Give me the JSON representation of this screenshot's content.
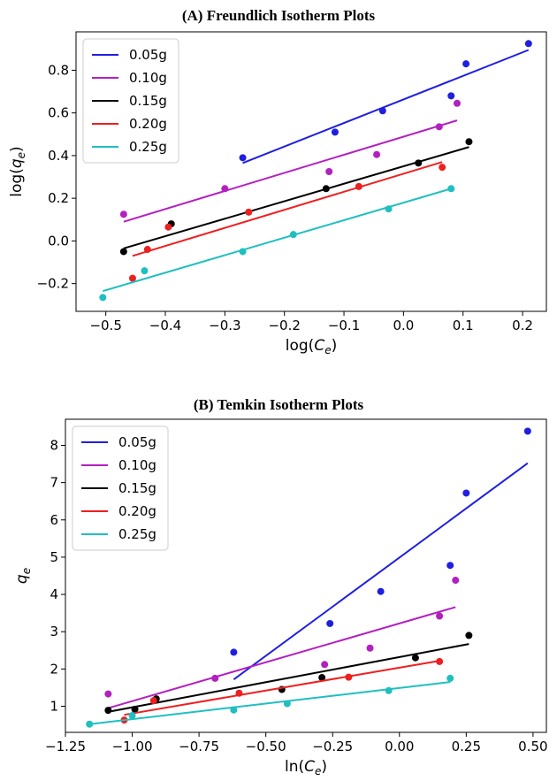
{
  "chart_data": [
    {
      "type": "scatter",
      "title": "(A) Freundlich Isotherm Plots",
      "xlabel_main": "log(",
      "xlabel_var": "C",
      "xlabel_sub": "e",
      "ylabel_main": "log(",
      "ylabel_var": "q",
      "ylabel_sub": "e",
      "xlim": [
        -0.55,
        0.24
      ],
      "ylim": [
        -0.33,
        0.98
      ],
      "xticks": [
        -0.5,
        -0.4,
        -0.3,
        -0.2,
        -0.1,
        0.0,
        0.1,
        0.2
      ],
      "xtick_labels": [
        "−0.5",
        "−0.4",
        "−0.3",
        "−0.2",
        "−0.1",
        "0.0",
        "0.1",
        "0.2"
      ],
      "yticks": [
        -0.2,
        0.0,
        0.2,
        0.4,
        0.6,
        0.8
      ],
      "ytick_labels": [
        "−0.2",
        "0.0",
        "0.2",
        "0.4",
        "0.6",
        "0.8"
      ],
      "legend_position": "top-left",
      "series": [
        {
          "name": "0.05g",
          "color": "#1f1fe0",
          "points": [
            [
              -0.27,
              0.39
            ],
            [
              -0.115,
              0.51
            ],
            [
              -0.035,
              0.61
            ],
            [
              0.08,
              0.68
            ],
            [
              0.105,
              0.83
            ],
            [
              0.21,
              0.925
            ]
          ],
          "fit": [
            [
              -0.27,
              0.365
            ],
            [
              0.21,
              0.895
            ]
          ]
        },
        {
          "name": "0.10g",
          "color": "#b41fc0",
          "points": [
            [
              -0.47,
              0.125
            ],
            [
              -0.3,
              0.245
            ],
            [
              -0.125,
              0.325
            ],
            [
              -0.045,
              0.405
            ],
            [
              0.06,
              0.535
            ],
            [
              0.09,
              0.645
            ]
          ],
          "fit": [
            [
              -0.47,
              0.09
            ],
            [
              0.09,
              0.565
            ]
          ]
        },
        {
          "name": "0.15g",
          "color": "#000000",
          "points": [
            [
              -0.47,
              -0.05
            ],
            [
              -0.39,
              0.08
            ],
            [
              -0.13,
              0.245
            ],
            [
              0.025,
              0.365
            ],
            [
              0.11,
              0.465
            ]
          ],
          "fit": [
            [
              -0.47,
              -0.035
            ],
            [
              0.11,
              0.44
            ]
          ]
        },
        {
          "name": "0.20g",
          "color": "#ee1f1f",
          "points": [
            [
              -0.455,
              -0.175
            ],
            [
              -0.43,
              -0.04
            ],
            [
              -0.395,
              0.065
            ],
            [
              -0.26,
              0.135
            ],
            [
              -0.075,
              0.255
            ],
            [
              0.065,
              0.345
            ]
          ],
          "fit": [
            [
              -0.455,
              -0.07
            ],
            [
              0.065,
              0.37
            ]
          ]
        },
        {
          "name": "0.25g",
          "color": "#1fbfbf",
          "points": [
            [
              -0.505,
              -0.265
            ],
            [
              -0.435,
              -0.14
            ],
            [
              -0.27,
              -0.05
            ],
            [
              -0.185,
              0.03
            ],
            [
              -0.025,
              0.15
            ],
            [
              0.08,
              0.245
            ]
          ],
          "fit": [
            [
              -0.505,
              -0.235
            ],
            [
              0.08,
              0.245
            ]
          ]
        }
      ]
    },
    {
      "type": "scatter",
      "title": "(B) Temkin Isotherm Plots",
      "xlabel_main": "ln(",
      "xlabel_var": "C",
      "xlabel_sub": "e",
      "ylabel_main": "",
      "ylabel_var": "q",
      "ylabel_sub": "e",
      "xlim": [
        -1.25,
        0.55
      ],
      "ylim": [
        0.3,
        8.7
      ],
      "xticks": [
        -1.25,
        -1.0,
        -0.75,
        -0.5,
        -0.25,
        0.0,
        0.25,
        0.5
      ],
      "xtick_labels": [
        "−1.25",
        "−1.00",
        "−0.75",
        "−0.50",
        "−0.25",
        "0.00",
        "0.25",
        "0.50"
      ],
      "yticks": [
        1,
        2,
        3,
        4,
        5,
        6,
        7,
        8
      ],
      "ytick_labels": [
        "1",
        "2",
        "3",
        "4",
        "5",
        "6",
        "7",
        "8"
      ],
      "legend_position": "top-left",
      "series": [
        {
          "name": "0.05g",
          "color": "#1f1fe0",
          "points": [
            [
              -0.62,
              2.45
            ],
            [
              -0.26,
              3.22
            ],
            [
              -0.07,
              4.08
            ],
            [
              0.19,
              4.78
            ],
            [
              0.25,
              6.72
            ],
            [
              0.48,
              8.38
            ]
          ],
          "fit": [
            [
              -0.62,
              1.72
            ],
            [
              0.48,
              7.52
            ]
          ]
        },
        {
          "name": "0.10g",
          "color": "#b41fc0",
          "points": [
            [
              -1.09,
              1.33
            ],
            [
              -0.69,
              1.75
            ],
            [
              -0.28,
              2.12
            ],
            [
              -0.11,
              2.56
            ],
            [
              0.15,
              3.42
            ],
            [
              0.21,
              4.38
            ]
          ],
          "fit": [
            [
              -1.09,
              0.95
            ],
            [
              0.21,
              3.66
            ]
          ]
        },
        {
          "name": "0.15g",
          "color": "#000000",
          "points": [
            [
              -1.09,
              0.89
            ],
            [
              -0.99,
              0.92
            ],
            [
              -0.91,
              1.2
            ],
            [
              -0.44,
              1.45
            ],
            [
              -0.29,
              1.77
            ],
            [
              0.06,
              2.3
            ],
            [
              0.26,
              2.9
            ]
          ],
          "fit": [
            [
              -1.09,
              0.85
            ],
            [
              0.26,
              2.67
            ]
          ]
        },
        {
          "name": "0.20g",
          "color": "#ee1f1f",
          "points": [
            [
              -1.03,
              0.63
            ],
            [
              -0.92,
              1.15
            ],
            [
              -0.6,
              1.35
            ],
            [
              -0.19,
              1.78
            ],
            [
              0.15,
              2.2
            ]
          ],
          "fit": [
            [
              -1.03,
              0.77
            ],
            [
              0.15,
              2.22
            ]
          ]
        },
        {
          "name": "0.25g",
          "color": "#1fbfbf",
          "points": [
            [
              -1.16,
              0.52
            ],
            [
              -1.0,
              0.75
            ],
            [
              -0.62,
              0.9
            ],
            [
              -0.42,
              1.07
            ],
            [
              -0.04,
              1.42
            ],
            [
              0.19,
              1.75
            ]
          ],
          "fit": [
            [
              -1.16,
              0.52
            ],
            [
              0.19,
              1.65
            ]
          ]
        }
      ]
    }
  ]
}
